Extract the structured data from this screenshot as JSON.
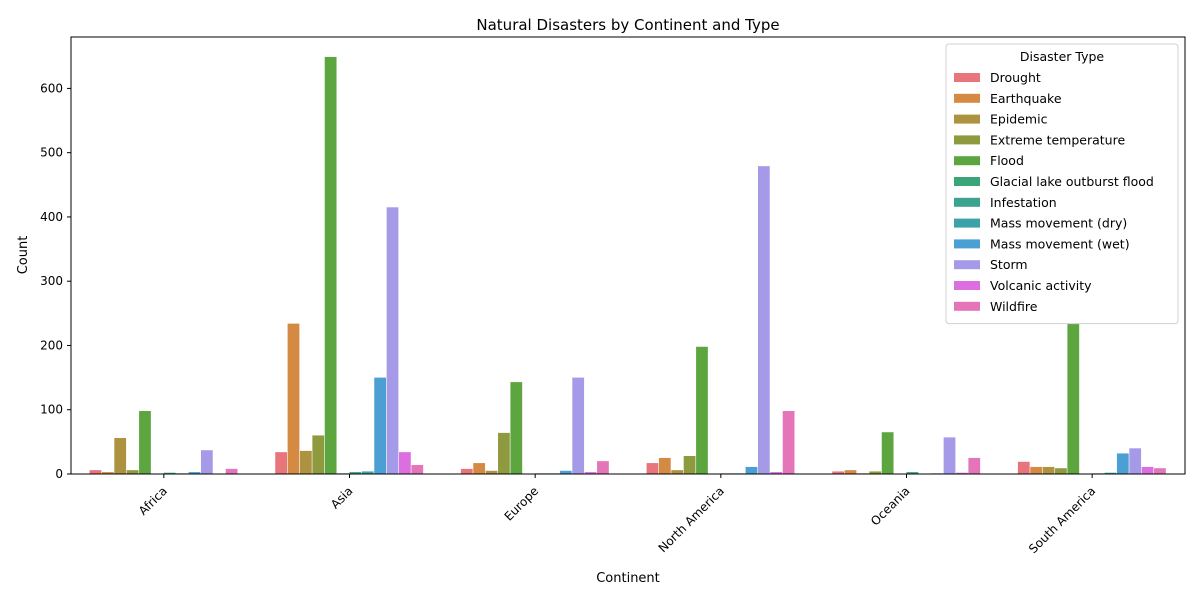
{
  "chart_data": {
    "type": "bar",
    "title": "Natural Disasters by Continent and Type",
    "xlabel": "Continent",
    "ylabel": "Count",
    "ylim": [
      0,
      680
    ],
    "yticks": [
      0,
      100,
      200,
      300,
      400,
      500,
      600
    ],
    "categories": [
      "Africa",
      "Asia",
      "Europe",
      "North America",
      "Oceania",
      "South America"
    ],
    "legend": {
      "title": "Disaster Type",
      "position": "top-right"
    },
    "series": [
      {
        "name": "Drought",
        "color": "#e8747c",
        "values": [
          6,
          34,
          8,
          17,
          4,
          19
        ]
      },
      {
        "name": "Earthquake",
        "color": "#d58a44",
        "values": [
          3,
          234,
          17,
          25,
          6,
          11
        ]
      },
      {
        "name": "Epidemic",
        "color": "#ad9340",
        "values": [
          56,
          36,
          5,
          6,
          1,
          11
        ]
      },
      {
        "name": "Extreme temperature",
        "color": "#8f9a3e",
        "values": [
          6,
          60,
          64,
          28,
          4,
          9
        ]
      },
      {
        "name": "Flood",
        "color": "#5ca53f",
        "values": [
          98,
          649,
          143,
          198,
          65,
          234
        ]
      },
      {
        "name": "Glacial lake outburst flood",
        "color": "#3ba579",
        "values": [
          0,
          1,
          0,
          0,
          0,
          0
        ]
      },
      {
        "name": "Infestation",
        "color": "#3ca38e",
        "values": [
          2,
          3,
          1,
          1,
          3,
          1
        ]
      },
      {
        "name": "Mass movement (dry)",
        "color": "#3da2a8",
        "values": [
          1,
          4,
          1,
          1,
          0,
          2
        ]
      },
      {
        "name": "Mass movement (wet)",
        "color": "#4b9fd3",
        "values": [
          3,
          150,
          5,
          11,
          1,
          32
        ]
      },
      {
        "name": "Storm",
        "color": "#a59ae8",
        "values": [
          37,
          415,
          150,
          479,
          57,
          40
        ]
      },
      {
        "name": "Volcanic activity",
        "color": "#dc6fe0",
        "values": [
          0,
          34,
          3,
          3,
          2,
          11
        ]
      },
      {
        "name": "Wildfire",
        "color": "#e475b8",
        "values": [
          8,
          14,
          20,
          98,
          25,
          9
        ]
      }
    ]
  }
}
